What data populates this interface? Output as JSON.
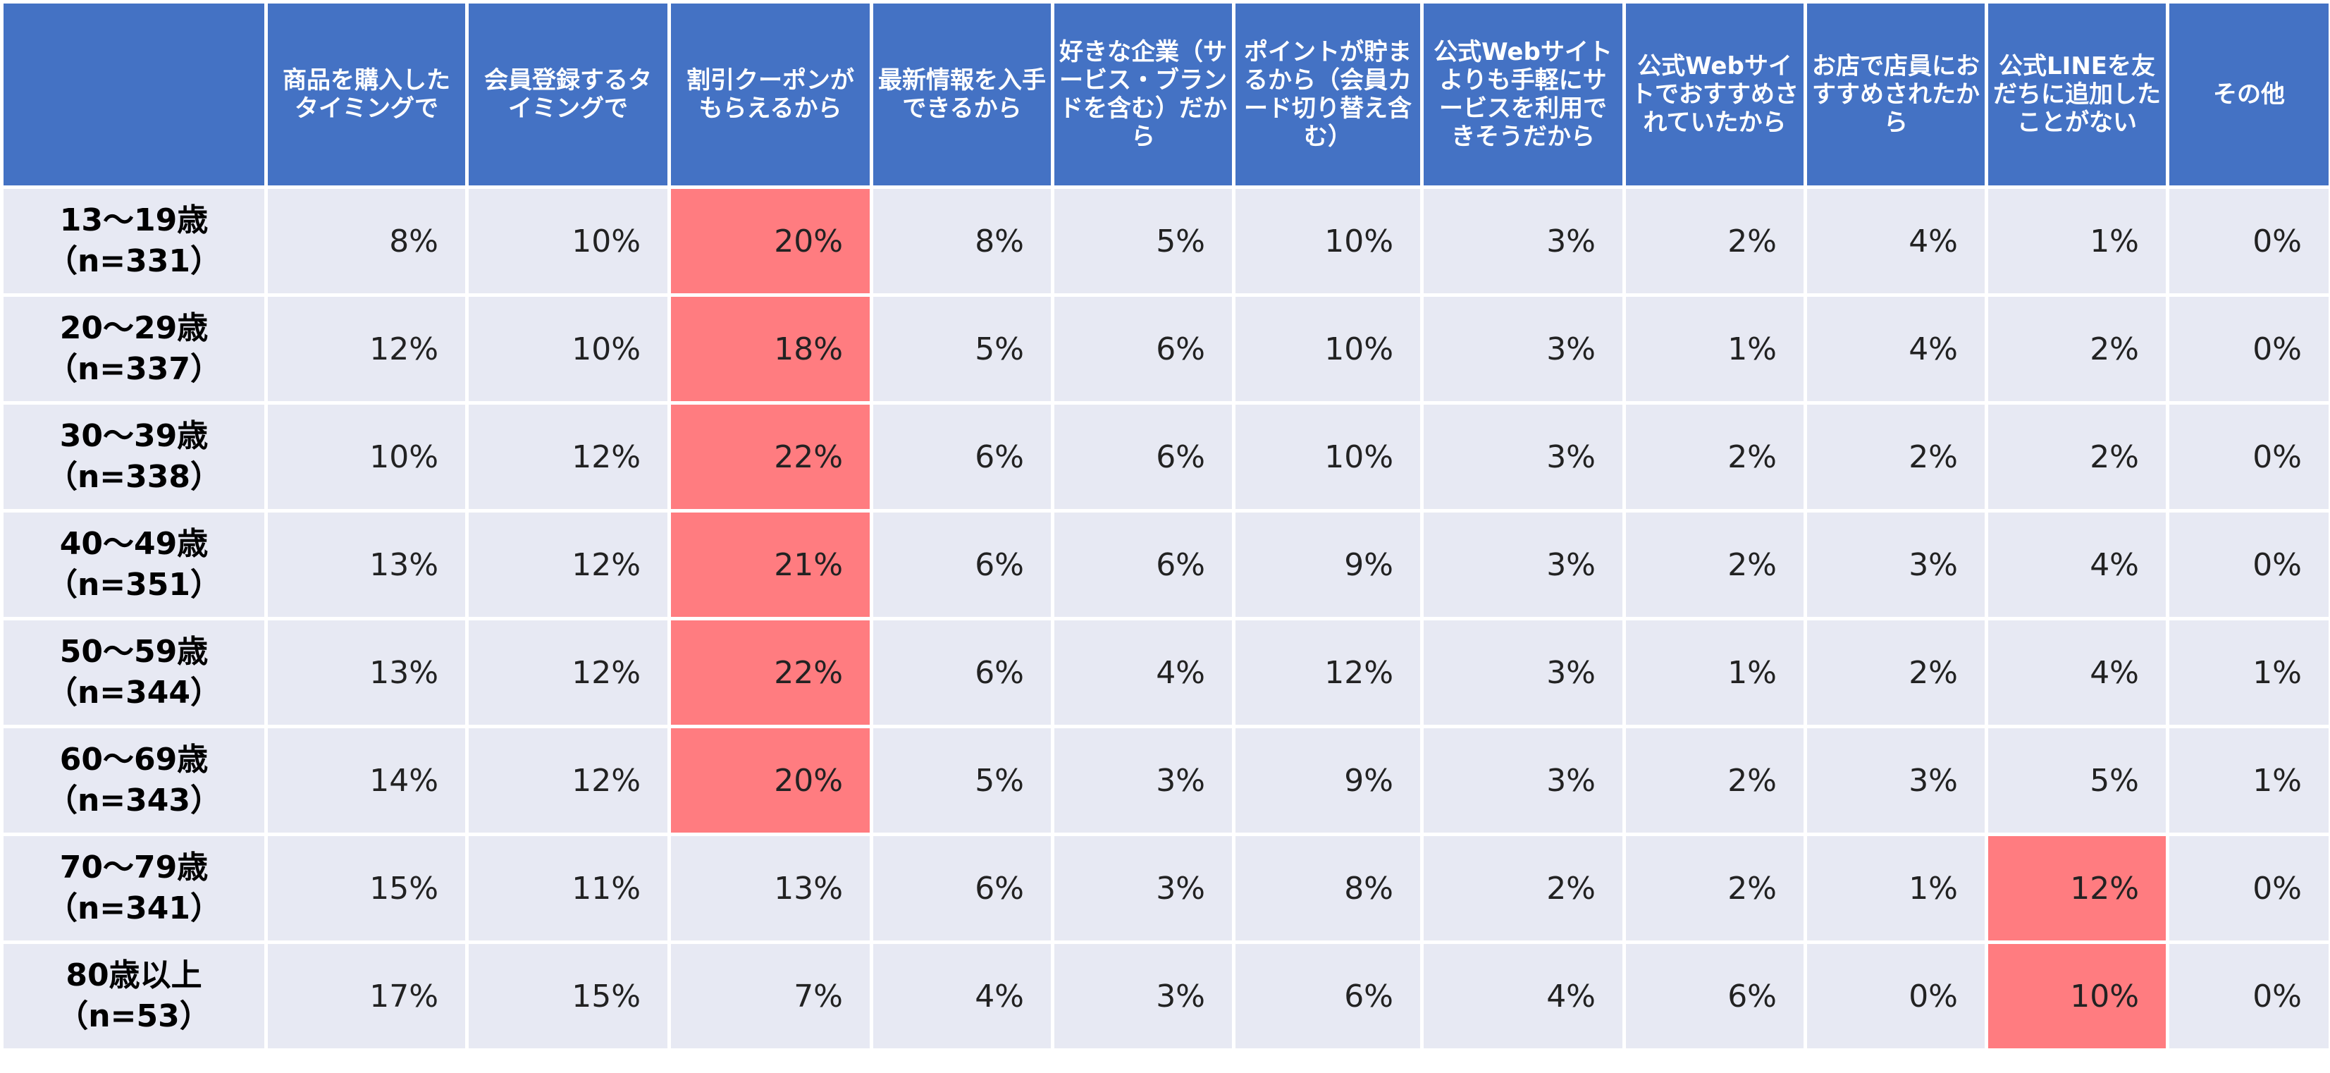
{
  "chart_data": {
    "type": "table",
    "columns": [
      "",
      "商品を購入したタイミングで",
      "会員登録するタイミングで",
      "割引クーポンがもらえるから",
      "最新情報を入手できるから",
      "好きな企業（サービス・ブランドを含む）だから",
      "ポイントが貯まるから（会員カード切り替え含む）",
      "公式Webサイトよりも手軽にサービスを利用できそうだから",
      "公式Webサイトでおすすめされていたから",
      "お店で店員におすすめされたから",
      "公式LINEを友だちに追加したことがない",
      "その他"
    ],
    "rows": [
      {
        "age": "13〜19歳",
        "n": "（n=331）",
        "values": [
          "8%",
          "10%",
          "20%",
          "8%",
          "5%",
          "10%",
          "3%",
          "2%",
          "4%",
          "1%",
          "0%"
        ],
        "highlight": [
          2
        ]
      },
      {
        "age": "20〜29歳",
        "n": "（n=337）",
        "values": [
          "12%",
          "10%",
          "18%",
          "5%",
          "6%",
          "10%",
          "3%",
          "1%",
          "4%",
          "2%",
          "0%"
        ],
        "highlight": [
          2
        ]
      },
      {
        "age": "30〜39歳",
        "n": "（n=338）",
        "values": [
          "10%",
          "12%",
          "22%",
          "6%",
          "6%",
          "10%",
          "3%",
          "2%",
          "2%",
          "2%",
          "0%"
        ],
        "highlight": [
          2
        ]
      },
      {
        "age": "40〜49歳",
        "n": "（n=351）",
        "values": [
          "13%",
          "12%",
          "21%",
          "6%",
          "6%",
          "9%",
          "3%",
          "2%",
          "3%",
          "4%",
          "0%"
        ],
        "highlight": [
          2
        ]
      },
      {
        "age": "50〜59歳",
        "n": "（n=344）",
        "values": [
          "13%",
          "12%",
          "22%",
          "6%",
          "4%",
          "12%",
          "3%",
          "1%",
          "2%",
          "4%",
          "1%"
        ],
        "highlight": [
          2
        ]
      },
      {
        "age": "60〜69歳",
        "n": "（n=343）",
        "values": [
          "14%",
          "12%",
          "20%",
          "5%",
          "3%",
          "9%",
          "3%",
          "2%",
          "3%",
          "5%",
          "1%"
        ],
        "highlight": [
          2
        ]
      },
      {
        "age": "70〜79歳",
        "n": "（n=341）",
        "values": [
          "15%",
          "11%",
          "13%",
          "6%",
          "3%",
          "8%",
          "2%",
          "2%",
          "1%",
          "12%",
          "0%"
        ],
        "highlight": [
          9
        ]
      },
      {
        "age": "80歳以上",
        "n": "（n=53）",
        "values": [
          "17%",
          "15%",
          "7%",
          "4%",
          "3%",
          "6%",
          "4%",
          "6%",
          "0%",
          "10%",
          "0%"
        ],
        "highlight": [
          9
        ]
      }
    ],
    "colors": {
      "header_bg": "#4472c4",
      "header_text": "#ffffff",
      "cell_bg": "#e7e9f3",
      "highlight_bg": "#ff7c80"
    }
  }
}
